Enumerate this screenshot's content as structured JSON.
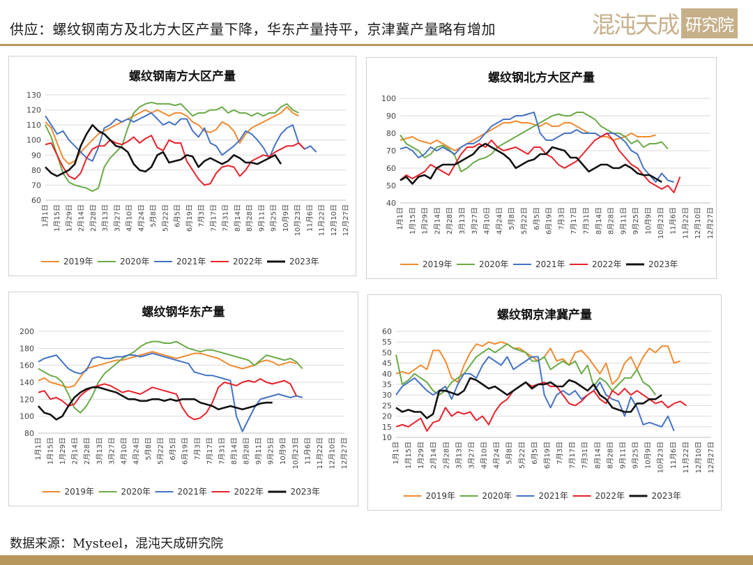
{
  "header": {
    "title": "供应：螺纹钢南方及北方大区产量下降，华东产量持平，京津冀产量略有增加",
    "logo_text": "混沌天成",
    "logo_box_text": "研究院"
  },
  "footer": {
    "source": "数据来源：Mysteel，混沌天成研究院"
  },
  "colors": {
    "2019": "#f08a30",
    "2020": "#6aaa46",
    "2021": "#4472c4",
    "2022": "#e8202a",
    "2023": "#111111",
    "accent": "#b8975c"
  },
  "chart_data": [
    {
      "type": "line",
      "title": "螺纹钢南方大区产量",
      "x_tick_labels": [
        "1月1日",
        "1月15日",
        "1月29日",
        "2月14日",
        "2月28日",
        "3月13日",
        "3月27日",
        "4月10日",
        "4月24日",
        "5月8日",
        "5月22日",
        "6月5日",
        "6月19日",
        "7月3日",
        "7月17日",
        "7月31日",
        "8月14日",
        "8月28日",
        "9月11日",
        "9月25日",
        "10月9日",
        "10月23日",
        "11月6日",
        "11月22日",
        "12月10日",
        "12月27日"
      ],
      "ylim": [
        60,
        130
      ],
      "y_ticks": [
        60,
        70,
        80,
        90,
        100,
        110,
        120,
        130
      ],
      "grid": true,
      "legend": "bottom",
      "series": [
        {
          "name": "2019年",
          "values": [
            112,
            108,
            98,
            88,
            84,
            86,
            92,
            96,
            100,
            104,
            106,
            108,
            110,
            112,
            114,
            116,
            118,
            120,
            118,
            120,
            118,
            116,
            118,
            118,
            116,
            112,
            110,
            106,
            105,
            107,
            112,
            110,
            106,
            98,
            104,
            108,
            110,
            112,
            114,
            116,
            118,
            122,
            118,
            116
          ]
        },
        {
          "name": "2020年",
          "values": [
            110,
            102,
            90,
            78,
            72,
            70,
            69,
            68,
            66,
            68,
            82,
            88,
            92,
            96,
            108,
            118,
            122,
            124,
            125,
            124,
            124,
            124,
            123,
            124,
            120,
            116,
            118,
            118,
            120,
            120,
            122,
            118,
            120,
            118,
            118,
            116,
            118,
            116,
            118,
            118,
            122,
            124,
            120,
            118
          ]
        },
        {
          "name": "2021年",
          "values": [
            116,
            110,
            104,
            106,
            100,
            96,
            92,
            88,
            86,
            95,
            108,
            110,
            114,
            112,
            114,
            112,
            114,
            116,
            118,
            114,
            110,
            112,
            110,
            114,
            114,
            106,
            102,
            108,
            98,
            96,
            90,
            93,
            96,
            100,
            106,
            104,
            100,
            95,
            88,
            97,
            104,
            108,
            110,
            98,
            94,
            96,
            92
          ]
        },
        {
          "name": "2022年",
          "values": [
            97,
            98,
            90,
            82,
            76,
            74,
            78,
            88,
            94,
            96,
            96,
            100,
            98,
            97,
            99,
            102,
            98,
            101,
            103,
            95,
            93,
            100,
            98,
            98,
            86,
            80,
            74,
            70,
            71,
            78,
            82,
            83,
            82,
            76,
            80,
            86,
            88,
            90,
            89,
            92,
            94,
            96,
            96,
            98,
            94
          ]
        },
        {
          "name": "2023年",
          "values": [
            82,
            78,
            76,
            78,
            80,
            84,
            96,
            104,
            110,
            106,
            104,
            100,
            96,
            95,
            92,
            84,
            80,
            79,
            82,
            90,
            92,
            85,
            86,
            87,
            90,
            89,
            82,
            86,
            88,
            86,
            84,
            86,
            90,
            88,
            85,
            85,
            84,
            86,
            88,
            90,
            84
          ]
        }
      ]
    },
    {
      "type": "line",
      "title": "螺纹钢北方大区产量",
      "x_tick_labels": [
        "1月1日",
        "1月15日",
        "1月29日",
        "2月14日",
        "2月28日",
        "3月13日",
        "3月27日",
        "4月10日",
        "4月24日",
        "5月8日",
        "5月22日",
        "6月5日",
        "6月19日",
        "7月3日",
        "7月17日",
        "7月31日",
        "8月14日",
        "8月28日",
        "9月11日",
        "9月25日",
        "10月9日",
        "10月23日",
        "11月6日",
        "11月22日",
        "12月10日",
        "12月27日"
      ],
      "ylim": [
        40,
        100
      ],
      "y_ticks": [
        40,
        50,
        60,
        70,
        80,
        90,
        100
      ],
      "grid": true,
      "legend": "bottom",
      "series": [
        {
          "name": "2019年",
          "values": [
            76,
            77,
            78,
            76,
            75,
            74,
            76,
            74,
            72,
            70,
            72,
            74,
            76,
            78,
            80,
            82,
            84,
            86,
            86,
            87,
            86,
            86,
            85,
            84,
            86,
            84,
            84,
            86,
            86,
            84,
            82,
            80,
            80,
            78,
            78,
            76,
            77,
            78,
            80,
            78,
            78,
            78,
            79
          ]
        },
        {
          "name": "2020年",
          "values": [
            79,
            74,
            72,
            70,
            66,
            68,
            72,
            73,
            71,
            67,
            58,
            60,
            63,
            65,
            66,
            68,
            72,
            74,
            76,
            78,
            80,
            82,
            84,
            86,
            88,
            90,
            91,
            90,
            90,
            92,
            92,
            90,
            88,
            84,
            82,
            80,
            80,
            78,
            74,
            76,
            72,
            74,
            74,
            75,
            71
          ]
        },
        {
          "name": "2021年",
          "values": [
            71,
            72,
            70,
            66,
            68,
            72,
            70,
            72,
            70,
            68,
            72,
            74,
            74,
            76,
            80,
            84,
            86,
            88,
            88,
            90,
            90,
            91,
            92,
            80,
            76,
            76,
            78,
            80,
            80,
            82,
            80,
            80,
            80,
            78,
            80,
            80,
            78,
            75,
            70,
            68,
            60,
            56,
            52,
            57,
            53,
            52
          ]
        },
        {
          "name": "2022年",
          "values": [
            53,
            56,
            54,
            56,
            58,
            62,
            60,
            58,
            56,
            62,
            68,
            72,
            72,
            74,
            72,
            76,
            72,
            70,
            71,
            72,
            70,
            68,
            72,
            72,
            68,
            66,
            62,
            60,
            62,
            64,
            68,
            72,
            76,
            78,
            80,
            76,
            70,
            66,
            62,
            60,
            56,
            52,
            50,
            48,
            50,
            46,
            55
          ]
        },
        {
          "name": "2023年",
          "values": [
            53,
            55,
            51,
            55,
            56,
            54,
            60,
            62,
            62,
            62,
            64,
            66,
            68,
            72,
            74,
            72,
            70,
            68,
            65,
            60,
            62,
            64,
            65,
            68,
            68,
            72,
            71,
            70,
            66,
            66,
            62,
            58,
            60,
            62,
            62,
            60,
            60,
            62,
            60,
            57,
            56,
            56,
            54,
            52
          ]
        }
      ]
    },
    {
      "type": "line",
      "title": "螺纹钢华东产量",
      "x_tick_labels": [
        "1月1日",
        "1月15日",
        "1月29日",
        "2月14日",
        "2月28日",
        "3月13日",
        "3月27日",
        "4月10日",
        "4月24日",
        "5月8日",
        "5月22日",
        "6月5日",
        "6月19日",
        "7月3日",
        "7月17日",
        "7月31日",
        "8月14日",
        "8月28日",
        "9月11日",
        "9月25日",
        "10月9日",
        "10月23日",
        "11月6日",
        "11月22日",
        "12月10日",
        "12月27日"
      ],
      "ylim": [
        80,
        200
      ],
      "y_ticks": [
        80,
        100,
        120,
        140,
        160,
        180,
        200
      ],
      "grid": true,
      "legend": "bottom",
      "series": [
        {
          "name": "2019年",
          "values": [
            142,
            145,
            140,
            138,
            136,
            134,
            136,
            146,
            156,
            158,
            160,
            162,
            164,
            166,
            166,
            168,
            170,
            172,
            174,
            176,
            174,
            172,
            170,
            168,
            170,
            172,
            174,
            174,
            172,
            170,
            168,
            164,
            160,
            158,
            156,
            158,
            160,
            164,
            166,
            164,
            160,
            162,
            164,
            162
          ]
        },
        {
          "name": "2020年",
          "values": [
            156,
            152,
            148,
            146,
            140,
            126,
            110,
            104,
            112,
            124,
            140,
            150,
            156,
            162,
            168,
            172,
            176,
            182,
            186,
            188,
            188,
            186,
            186,
            188,
            184,
            180,
            178,
            176,
            178,
            178,
            176,
            174,
            172,
            170,
            168,
            166,
            160,
            166,
            172,
            170,
            168,
            166,
            168,
            164,
            156
          ]
        },
        {
          "name": "2021年",
          "values": [
            164,
            168,
            170,
            172,
            164,
            156,
            152,
            150,
            154,
            168,
            170,
            168,
            168,
            170,
            170,
            172,
            172,
            170,
            172,
            174,
            172,
            170,
            168,
            166,
            164,
            162,
            152,
            150,
            148,
            148,
            146,
            144,
            142,
            100,
            82,
            96,
            110,
            120,
            122,
            124,
            126,
            124,
            122,
            124,
            122
          ]
        },
        {
          "name": "2022年",
          "values": [
            128,
            130,
            120,
            122,
            118,
            112,
            114,
            124,
            130,
            134,
            136,
            138,
            136,
            132,
            128,
            130,
            128,
            126,
            130,
            134,
            132,
            130,
            128,
            126,
            110,
            100,
            96,
            98,
            104,
            116,
            134,
            140,
            138,
            136,
            140,
            142,
            140,
            144,
            140,
            138,
            140,
            142,
            138,
            124
          ]
        },
        {
          "name": "2023年",
          "values": [
            112,
            104,
            102,
            96,
            100,
            112,
            122,
            128,
            132,
            134,
            134,
            132,
            130,
            128,
            124,
            120,
            120,
            118,
            118,
            120,
            120,
            118,
            120,
            118,
            120,
            120,
            120,
            116,
            114,
            112,
            108,
            110,
            112,
            110,
            108,
            110,
            112,
            115,
            116,
            116
          ]
        }
      ]
    },
    {
      "type": "line",
      "title": "螺纹钢京津冀产量",
      "x_tick_labels": [
        "1月1日",
        "1月15日",
        "1月29日",
        "2月14日",
        "2月28日",
        "3月13日",
        "3月27日",
        "4月10日",
        "4月24日",
        "5月8日",
        "5月22日",
        "6月5日",
        "6月19日",
        "7月3日",
        "7月17日",
        "7月31日",
        "8月14日",
        "8月28日",
        "9月11日",
        "9月25日",
        "10月9日",
        "10月23日",
        "11月6日",
        "11月22日",
        "12月10日",
        "12月27日"
      ],
      "ylim": [
        10,
        60
      ],
      "y_ticks": [
        10,
        15,
        20,
        25,
        30,
        35,
        40,
        45,
        50,
        55,
        60
      ],
      "grid": true,
      "legend": "bottom",
      "series": [
        {
          "name": "2019年",
          "values": [
            40,
            41,
            40,
            42,
            44,
            42,
            51,
            51,
            46,
            38,
            36,
            44,
            50,
            54,
            53,
            55,
            54,
            55,
            54,
            52,
            52,
            50,
            48,
            46,
            48,
            52,
            46,
            47,
            44,
            50,
            51,
            48,
            44,
            40,
            45,
            35,
            38,
            45,
            48,
            42,
            48,
            52,
            50,
            53,
            53,
            45,
            46
          ]
        },
        {
          "name": "2020年",
          "values": [
            49,
            35,
            37,
            40,
            38,
            36,
            32,
            30,
            32,
            36,
            38,
            40,
            44,
            48,
            50,
            52,
            50,
            52,
            54,
            52,
            51,
            50,
            46,
            46,
            48,
            42,
            44,
            46,
            44,
            46,
            40,
            44,
            34,
            38,
            36,
            32,
            35,
            38,
            38,
            42,
            36,
            34,
            30
          ]
        },
        {
          "name": "2021年",
          "values": [
            30,
            34,
            36,
            38,
            35,
            32,
            30,
            32,
            34,
            28,
            35,
            40,
            40,
            38,
            44,
            48,
            46,
            44,
            48,
            42,
            44,
            46,
            48,
            48,
            30,
            24,
            30,
            32,
            30,
            32,
            28,
            30,
            32,
            36,
            30,
            28,
            27,
            20,
            29,
            24,
            16,
            17,
            16,
            15,
            20,
            13
          ]
        },
        {
          "name": "2022年",
          "values": [
            15,
            16,
            15,
            17,
            19,
            13,
            17,
            18,
            24,
            20,
            22,
            21,
            22,
            18,
            20,
            16,
            22,
            26,
            28,
            32,
            34,
            36,
            34,
            35,
            36,
            34,
            34,
            30,
            26,
            25,
            27,
            30,
            32,
            28,
            26,
            32,
            30,
            33,
            30,
            32,
            30,
            28,
            26,
            27,
            24,
            26,
            27,
            25
          ]
        },
        {
          "name": "2023年",
          "values": [
            24,
            22,
            23,
            22,
            22,
            19,
            21,
            32,
            32,
            31,
            30,
            32,
            38,
            37,
            35,
            33,
            34,
            32,
            30,
            32,
            34,
            36,
            33,
            35,
            35,
            36,
            34,
            34,
            37,
            36,
            34,
            32,
            35,
            30,
            28,
            24,
            23,
            22,
            22,
            26,
            26,
            28,
            28,
            30
          ]
        }
      ]
    }
  ]
}
